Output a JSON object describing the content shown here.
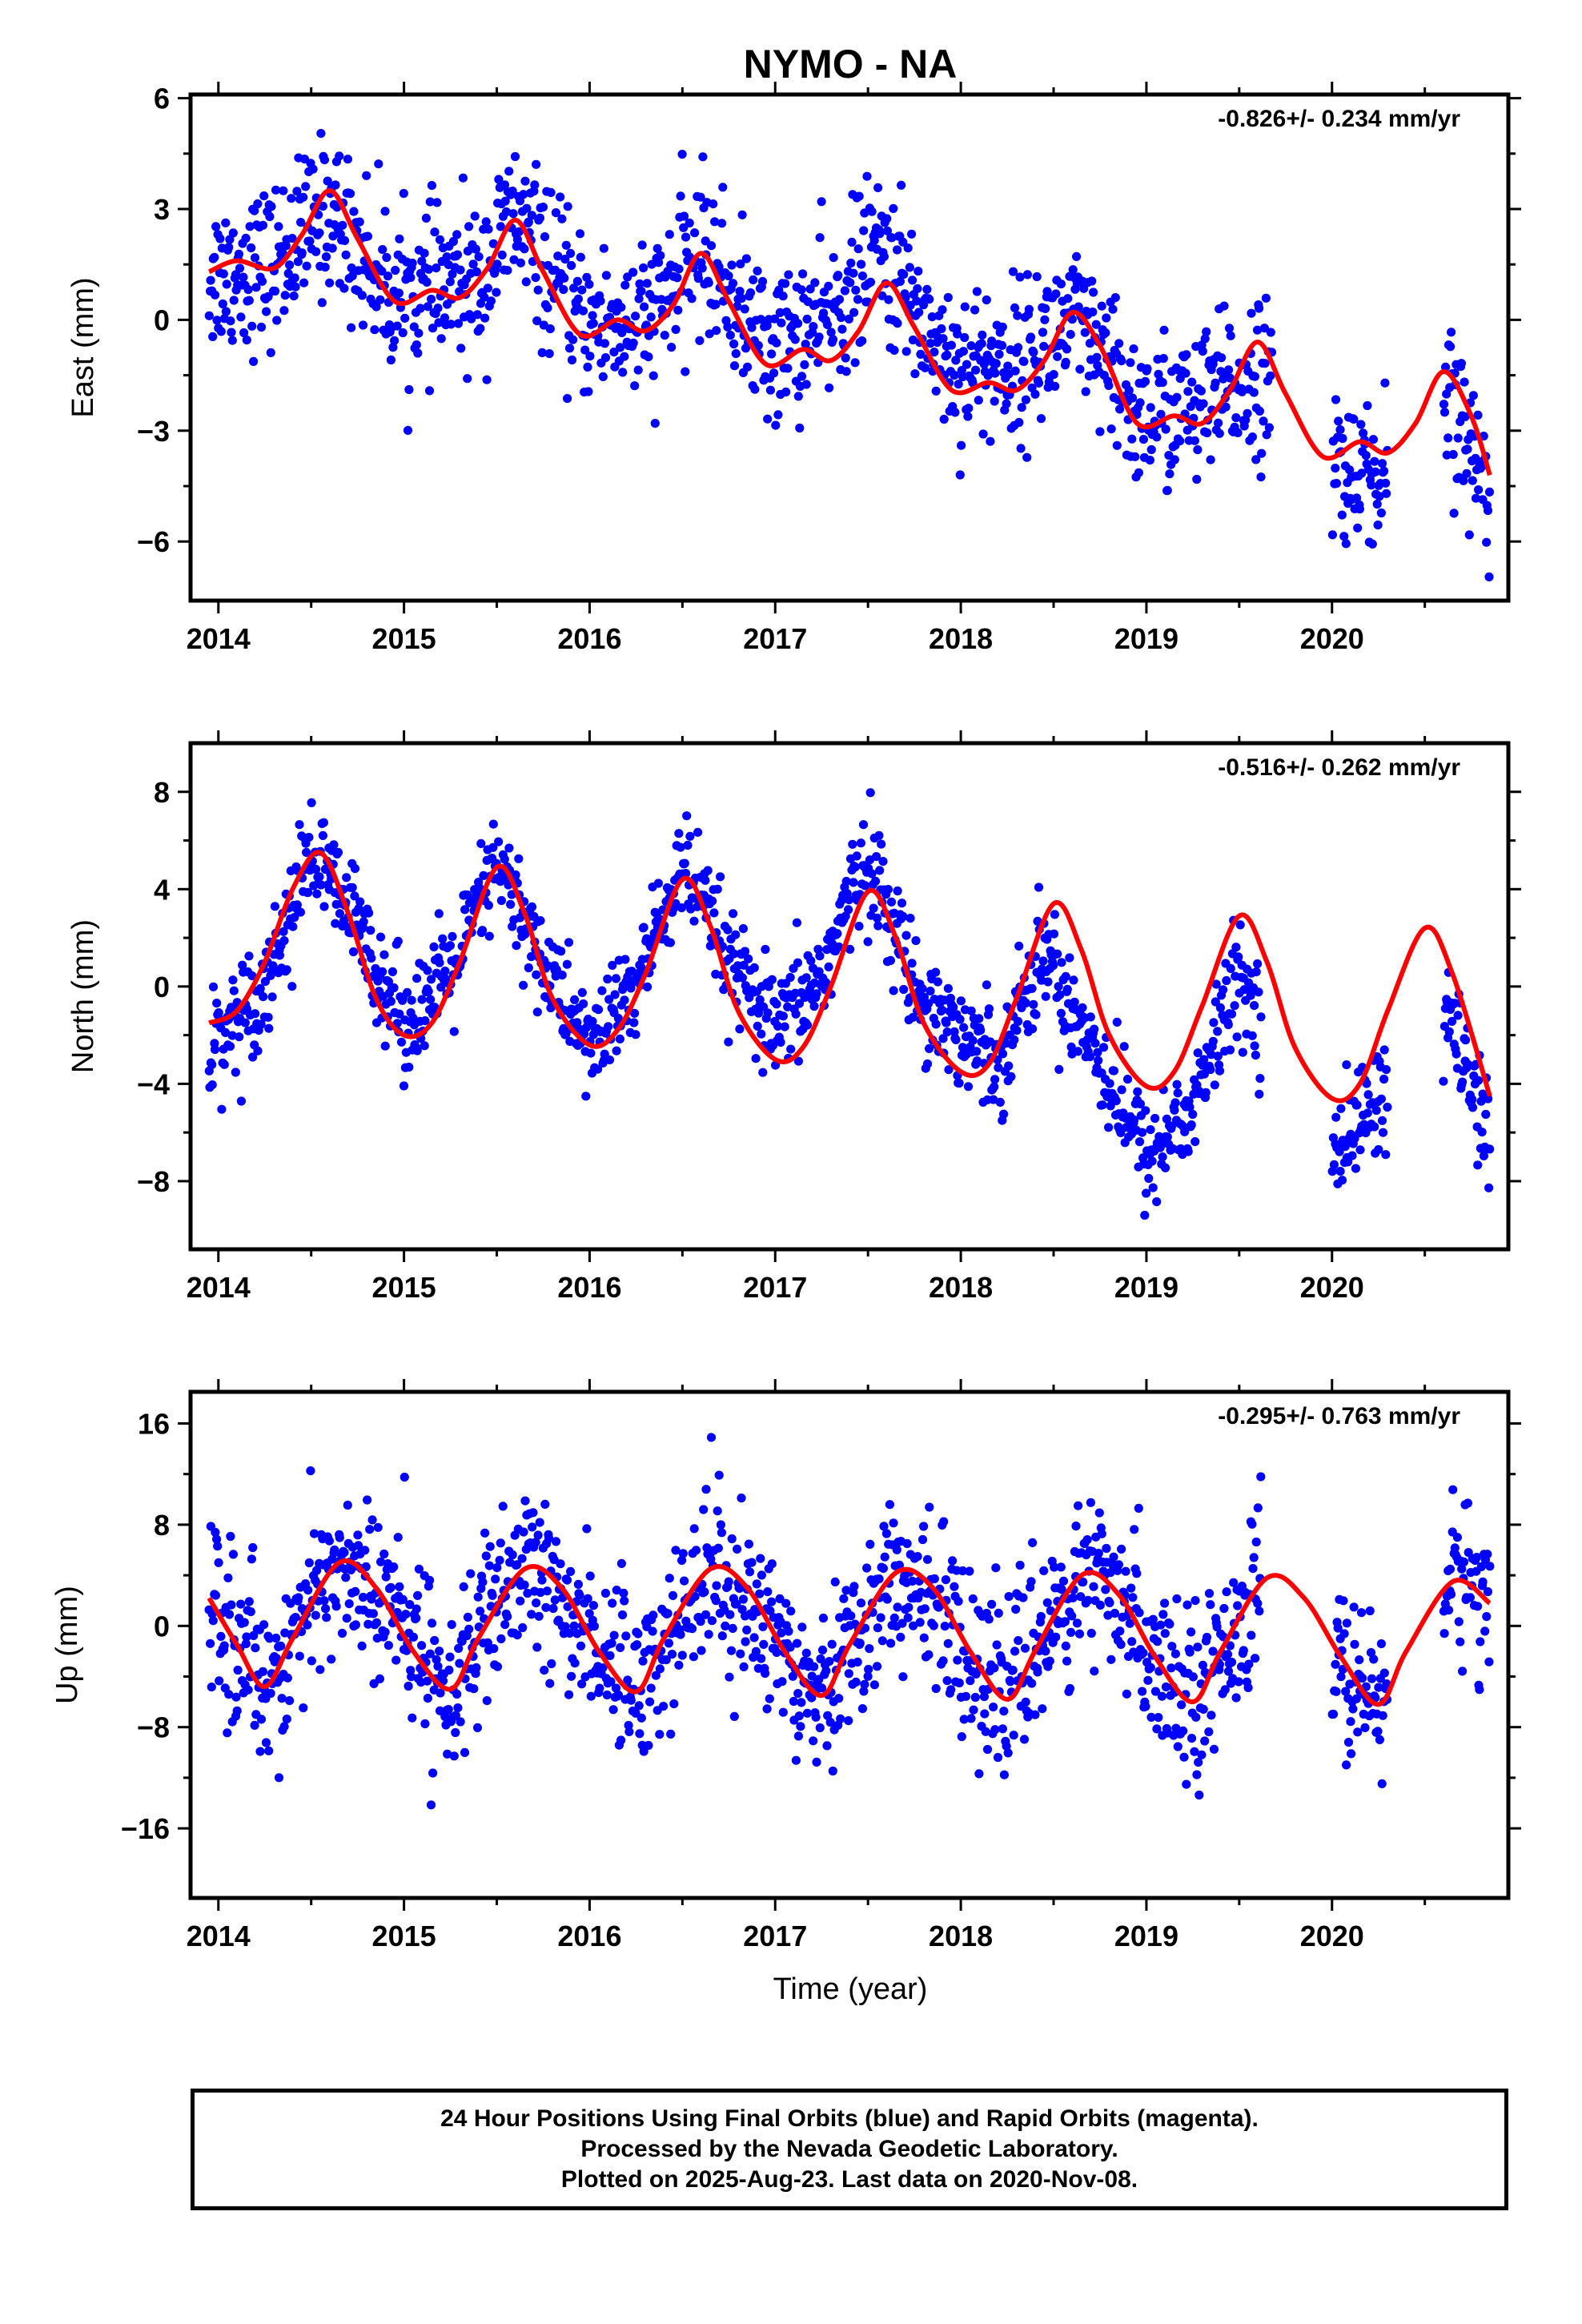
{
  "figure": {
    "title": "NYMO - NA",
    "x_axis_label": "Time (year)"
  },
  "caption": {
    "line1": "24 Hour Positions Using Final Orbits (blue) and Rapid Orbits (magenta).",
    "line2": "Processed by the Nevada Geodetic Laboratory.",
    "line3": "Plotted on 2025-Aug-23. Last data on 2020-Nov-08."
  },
  "colors": {
    "points": "#0000ff",
    "fit": "#ff0000",
    "axis": "#000000"
  },
  "chart_data": [
    {
      "type": "scatter",
      "ylabel": "East (mm)",
      "rate_label": "-0.826+/- 0.234 mm/yr",
      "xlim": [
        2013.85,
        2020.95
      ],
      "ylim": [
        -7.6,
        6.1
      ],
      "xticks": [
        2014,
        2015,
        2016,
        2017,
        2018,
        2019,
        2020
      ],
      "yticks": [
        -6,
        -3,
        0,
        3,
        6
      ],
      "yticks_minor": [
        -4.5,
        -1.5,
        1.5,
        4.5
      ],
      "gaps": [
        [
          2019.68,
          2020.0
        ],
        [
          2020.3,
          2020.6
        ]
      ],
      "series": [
        {
          "type": "scatter",
          "trend_points": [
            [
              2013.95,
              1.2
            ],
            [
              2014.3,
              1.5
            ],
            [
              2014.6,
              3.0
            ],
            [
              2014.95,
              0.6
            ],
            [
              2015.4,
              1.0
            ],
            [
              2015.6,
              2.8
            ],
            [
              2015.95,
              0.0
            ],
            [
              2016.3,
              -0.2
            ],
            [
              2016.6,
              2.0
            ],
            [
              2016.95,
              -0.8
            ],
            [
              2017.3,
              0.0
            ],
            [
              2017.55,
              2.0
            ],
            [
              2017.95,
              -1.2
            ],
            [
              2018.3,
              -1.2
            ],
            [
              2018.6,
              0.0
            ],
            [
              2018.95,
              -2.6
            ],
            [
              2019.3,
              -2.4
            ],
            [
              2019.6,
              -1.4
            ],
            [
              2020.1,
              -4.4
            ],
            [
              2020.3,
              -4.2
            ],
            [
              2020.65,
              -2.4
            ],
            [
              2020.85,
              -4.8
            ]
          ],
          "scatter_sd": 1.05
        },
        {
          "type": "line",
          "x": [
            2013.95,
            2014.1,
            2014.3,
            2014.45,
            2014.6,
            2014.75,
            2014.95,
            2015.15,
            2015.3,
            2015.45,
            2015.6,
            2015.75,
            2015.95,
            2016.15,
            2016.3,
            2016.45,
            2016.6,
            2016.75,
            2016.95,
            2017.15,
            2017.3,
            2017.45,
            2017.6,
            2017.75,
            2017.95,
            2018.15,
            2018.3,
            2018.45,
            2018.6,
            2018.75,
            2018.95,
            2019.15,
            2019.3,
            2019.45,
            2019.6,
            2019.75,
            2019.95,
            2020.15,
            2020.3,
            2020.45,
            2020.6,
            2020.75,
            2020.85
          ],
          "y": [
            1.3,
            1.6,
            1.4,
            2.3,
            3.5,
            2.2,
            0.5,
            0.8,
            0.6,
            1.4,
            2.7,
            1.3,
            -0.4,
            0.0,
            -0.3,
            0.4,
            1.8,
            0.5,
            -1.2,
            -0.8,
            -1.1,
            -0.3,
            1.0,
            -0.2,
            -1.9,
            -1.7,
            -1.9,
            -1.1,
            0.2,
            -0.7,
            -2.8,
            -2.6,
            -2.8,
            -1.9,
            -0.6,
            -2.0,
            -3.7,
            -3.3,
            -3.6,
            -2.8,
            -1.4,
            -2.6,
            -4.2
          ]
        }
      ]
    },
    {
      "type": "scatter",
      "ylabel": "North (mm)",
      "rate_label": "-0.516+/- 0.262 mm/yr",
      "xlim": [
        2013.85,
        2020.95
      ],
      "ylim": [
        -10.8,
        10.0
      ],
      "xticks": [
        2014,
        2015,
        2016,
        2017,
        2018,
        2019,
        2020
      ],
      "yticks": [
        -8,
        -4,
        0,
        4,
        8
      ],
      "yticks_minor": [
        -6,
        -2,
        2,
        6
      ],
      "gaps": [
        [
          2019.62,
          2020.0
        ],
        [
          2020.3,
          2020.6
        ]
      ],
      "series": [
        {
          "type": "scatter",
          "trend_points": [
            [
              2013.95,
              -2.5
            ],
            [
              2014.25,
              0.0
            ],
            [
              2014.5,
              5.5
            ],
            [
              2014.75,
              2.5
            ],
            [
              2015.0,
              -1.5
            ],
            [
              2015.25,
              0.5
            ],
            [
              2015.5,
              5.0
            ],
            [
              2015.75,
              1.0
            ],
            [
              2016.0,
              -2.5
            ],
            [
              2016.25,
              0.0
            ],
            [
              2016.5,
              5.0
            ],
            [
              2016.75,
              1.0
            ],
            [
              2017.0,
              -2.0
            ],
            [
              2017.25,
              0.5
            ],
            [
              2017.5,
              5.5
            ],
            [
              2017.75,
              0.0
            ],
            [
              2018.0,
              -2.0
            ],
            [
              2018.2,
              -3.0
            ],
            [
              2018.45,
              1.5
            ],
            [
              2018.75,
              -3.0
            ],
            [
              2019.0,
              -7.0
            ],
            [
              2019.25,
              -5.0
            ],
            [
              2019.5,
              0.5
            ],
            [
              2020.0,
              -7.0
            ],
            [
              2020.25,
              -4.5
            ],
            [
              2020.65,
              -1.5
            ],
            [
              2020.85,
              -6.5
            ]
          ],
          "scatter_sd": 1.1
        },
        {
          "type": "line",
          "x": [
            2013.95,
            2014.1,
            2014.25,
            2014.4,
            2014.55,
            2014.7,
            2014.85,
            2015.0,
            2015.15,
            2015.3,
            2015.5,
            2015.65,
            2015.8,
            2016.0,
            2016.15,
            2016.3,
            2016.5,
            2016.65,
            2016.8,
            2017.0,
            2017.15,
            2017.3,
            2017.5,
            2017.65,
            2017.8,
            2018.0,
            2018.15,
            2018.3,
            2018.5,
            2018.65,
            2018.8,
            2019.0,
            2019.15,
            2019.3,
            2019.5,
            2019.65,
            2019.8,
            2020.0,
            2020.15,
            2020.3,
            2020.5,
            2020.65,
            2020.85
          ],
          "y": [
            -1.5,
            -1.0,
            1.0,
            4.0,
            5.5,
            3.0,
            -0.5,
            -2.0,
            -1.5,
            1.0,
            4.9,
            3.0,
            -0.5,
            -2.4,
            -1.8,
            0.5,
            4.4,
            2.5,
            -1.0,
            -3.0,
            -2.5,
            0.0,
            3.9,
            2.0,
            -1.5,
            -3.5,
            -3.2,
            -0.5,
            3.4,
            1.5,
            -2.0,
            -4.1,
            -3.5,
            -0.8,
            2.9,
            1.0,
            -2.5,
            -4.6,
            -4.0,
            -1.0,
            2.4,
            0.5,
            -4.5
          ]
        }
      ]
    },
    {
      "type": "scatter",
      "ylabel": "Up (mm)",
      "rate_label": "-0.295+/- 0.763 mm/yr",
      "xlim": [
        2013.85,
        2020.95
      ],
      "ylim": [
        -21.5,
        18.5
      ],
      "xticks": [
        2014,
        2015,
        2016,
        2017,
        2018,
        2019,
        2020
      ],
      "yticks": [
        -16,
        -8,
        0,
        8,
        16
      ],
      "yticks_minor": [
        -12,
        -4,
        4,
        12
      ],
      "gaps": [
        [
          2019.62,
          2020.0
        ],
        [
          2020.3,
          2020.6
        ]
      ],
      "series": [
        {
          "type": "scatter",
          "trend_points": [
            [
              2013.95,
              2.0
            ],
            [
              2014.25,
              -4.5
            ],
            [
              2014.65,
              5.0
            ],
            [
              2014.95,
              1.0
            ],
            [
              2015.25,
              -5.0
            ],
            [
              2015.65,
              4.5
            ],
            [
              2015.95,
              0.5
            ],
            [
              2016.25,
              -5.0
            ],
            [
              2016.65,
              4.5
            ],
            [
              2016.95,
              0.0
            ],
            [
              2017.25,
              -5.0
            ],
            [
              2017.65,
              4.0
            ],
            [
              2017.95,
              0.0
            ],
            [
              2018.25,
              -5.5
            ],
            [
              2018.65,
              4.0
            ],
            [
              2018.95,
              0.0
            ],
            [
              2019.25,
              -6.0
            ],
            [
              2019.6,
              3.5
            ],
            [
              2020.1,
              -5.0
            ],
            [
              2020.25,
              -6.0
            ],
            [
              2020.7,
              4.5
            ],
            [
              2020.85,
              2.0
            ]
          ],
          "scatter_sd": 3.3
        },
        {
          "type": "line",
          "x": [
            2013.95,
            2014.1,
            2014.25,
            2014.4,
            2014.65,
            2014.85,
            2015.05,
            2015.25,
            2015.4,
            2015.65,
            2015.85,
            2016.05,
            2016.25,
            2016.4,
            2016.65,
            2016.85,
            2017.05,
            2017.25,
            2017.4,
            2017.65,
            2017.85,
            2018.05,
            2018.25,
            2018.4,
            2018.65,
            2018.85,
            2019.05,
            2019.25,
            2019.4,
            2019.65,
            2019.85,
            2020.05,
            2020.25,
            2020.4,
            2020.65,
            2020.85
          ],
          "y": [
            2.2,
            -1.5,
            -4.8,
            -1.0,
            5.0,
            3.0,
            -2.0,
            -5.0,
            -1.0,
            4.5,
            3.0,
            -2.0,
            -5.2,
            -1.0,
            4.5,
            3.0,
            -2.0,
            -5.5,
            -1.5,
            4.2,
            3.0,
            -2.0,
            -5.8,
            -2.0,
            4.0,
            2.5,
            -2.5,
            -6.0,
            -2.0,
            3.8,
            2.2,
            -2.5,
            -6.2,
            -2.0,
            3.5,
            1.8
          ]
        }
      ]
    }
  ]
}
